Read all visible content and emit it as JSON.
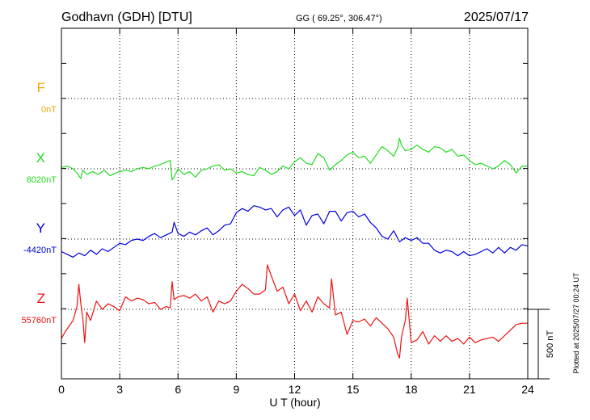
{
  "header": {
    "station": "Godhavn (GDH)  [DTU]",
    "coords": "GG ( 69.25°, 306.47°)",
    "date": "2025/07/17"
  },
  "side_note": "Plotted at 2025/07/27 00:24 UT",
  "scale_label": "500 nT",
  "chart_data": {
    "type": "line",
    "xlabel": "U T (hour)",
    "xlim": [
      0,
      24
    ],
    "x_ticks": [
      "0",
      "3",
      "6",
      "9",
      "12",
      "15",
      "18",
      "21",
      "24"
    ],
    "ylabel": "",
    "grid": true,
    "scale_bar_nT": 500,
    "series": [
      {
        "name": "F",
        "baseline_label": "0nT",
        "color": "#f5a800",
        "baseline_nT": 0,
        "x": [],
        "values": []
      },
      {
        "name": "X",
        "baseline_label": "8020nT",
        "color": "#22dd22",
        "baseline_nT": 8020,
        "x": [
          0,
          0.3,
          0.6,
          0.8,
          1.0,
          1.1,
          1.3,
          1.6,
          1.9,
          2.2,
          2.5,
          2.8,
          3.0,
          3.3,
          3.6,
          3.9,
          4.2,
          4.5,
          4.8,
          5.1,
          5.4,
          5.6,
          5.7,
          5.8,
          6.0,
          6.3,
          6.6,
          6.9,
          7.2,
          7.5,
          7.8,
          8.1,
          8.4,
          8.7,
          9.0,
          9.3,
          9.6,
          9.9,
          10.2,
          10.5,
          10.8,
          11.1,
          11.4,
          11.7,
          12.0,
          12.3,
          12.6,
          12.9,
          13.2,
          13.5,
          13.8,
          14.1,
          14.4,
          14.7,
          15.0,
          15.3,
          15.6,
          15.9,
          16.2,
          16.5,
          16.8,
          17.1,
          17.3,
          17.4,
          17.5,
          17.7,
          18.0,
          18.3,
          18.6,
          18.9,
          19.2,
          19.5,
          19.8,
          20.1,
          20.4,
          20.7,
          21.0,
          21.3,
          21.6,
          21.9,
          22.2,
          22.5,
          22.8,
          23.1,
          23.4,
          23.7,
          24.0
        ],
        "values": [
          10,
          20,
          0,
          -30,
          -70,
          -10,
          -40,
          -20,
          -40,
          -10,
          -50,
          -30,
          -20,
          -10,
          -20,
          0,
          10,
          0,
          20,
          30,
          50,
          60,
          -80,
          -60,
          0,
          -40,
          -20,
          -60,
          -10,
          0,
          20,
          30,
          -10,
          0,
          -30,
          -20,
          -40,
          -50,
          10,
          -10,
          -40,
          -20,
          20,
          0,
          50,
          80,
          40,
          30,
          110,
          80,
          -10,
          30,
          60,
          100,
          120,
          80,
          90,
          40,
          100,
          160,
          130,
          90,
          150,
          220,
          170,
          130,
          140,
          170,
          140,
          120,
          160,
          150,
          120,
          140,
          90,
          100,
          60,
          30,
          40,
          20,
          0,
          20,
          60,
          30,
          -30,
          20,
          20
        ]
      },
      {
        "name": "Y",
        "baseline_label": "-4420nT",
        "color": "#0000dd",
        "baseline_nT": -4420,
        "x": [
          0,
          0.3,
          0.6,
          0.9,
          1.2,
          1.5,
          1.8,
          2.1,
          2.4,
          2.7,
          3.0,
          3.3,
          3.6,
          3.9,
          4.2,
          4.5,
          4.8,
          5.1,
          5.4,
          5.7,
          5.8,
          6.0,
          6.3,
          6.6,
          6.9,
          7.2,
          7.5,
          7.8,
          8.1,
          8.4,
          8.7,
          9.0,
          9.3,
          9.6,
          9.9,
          10.2,
          10.5,
          10.8,
          11.1,
          11.4,
          11.7,
          12.0,
          12.3,
          12.6,
          12.9,
          13.2,
          13.5,
          13.8,
          14.1,
          14.4,
          14.7,
          15.0,
          15.3,
          15.6,
          15.9,
          16.2,
          16.5,
          16.8,
          17.1,
          17.4,
          17.7,
          18.0,
          18.3,
          18.6,
          18.9,
          19.2,
          19.5,
          19.8,
          20.1,
          20.4,
          20.7,
          21.0,
          21.3,
          21.6,
          21.9,
          22.2,
          22.5,
          22.8,
          23.1,
          23.4,
          23.7,
          24.0
        ],
        "values": [
          -90,
          -110,
          -130,
          -100,
          -120,
          -80,
          -110,
          -70,
          -90,
          -60,
          -30,
          -40,
          -10,
          0,
          -10,
          20,
          40,
          10,
          30,
          50,
          120,
          40,
          20,
          50,
          30,
          60,
          80,
          30,
          60,
          100,
          110,
          190,
          220,
          200,
          240,
          230,
          210,
          220,
          160,
          210,
          230,
          170,
          210,
          100,
          170,
          180,
          110,
          200,
          200,
          130,
          190,
          200,
          160,
          180,
          120,
          80,
          20,
          0,
          60,
          -20,
          10,
          -10,
          10,
          -30,
          -30,
          -80,
          -100,
          -80,
          -90,
          -120,
          -90,
          -120,
          -110,
          -90,
          -70,
          -100,
          -60,
          -100,
          -60,
          -80,
          -40,
          -50
        ]
      },
      {
        "name": "Z",
        "baseline_label": "55760nT",
        "color": "#ee1111",
        "baseline_nT": 55760,
        "x": [
          0,
          0.2,
          0.4,
          0.6,
          0.8,
          0.9,
          1.0,
          1.1,
          1.2,
          1.3,
          1.5,
          1.8,
          2.1,
          2.4,
          2.7,
          3.0,
          3.3,
          3.6,
          3.9,
          4.2,
          4.5,
          4.8,
          5.1,
          5.4,
          5.6,
          5.7,
          5.8,
          6.0,
          6.3,
          6.6,
          6.9,
          7.2,
          7.5,
          7.8,
          8.1,
          8.4,
          8.7,
          9.0,
          9.3,
          9.6,
          9.9,
          10.2,
          10.5,
          10.6,
          10.8,
          11.1,
          11.4,
          11.7,
          12.0,
          12.3,
          12.6,
          12.9,
          13.2,
          13.5,
          13.8,
          13.9,
          14.1,
          14.4,
          14.7,
          15.0,
          15.3,
          15.6,
          15.9,
          16.2,
          16.5,
          16.8,
          17.1,
          17.3,
          17.4,
          17.5,
          17.7,
          17.8,
          18.0,
          18.3,
          18.6,
          18.9,
          19.2,
          19.5,
          19.8,
          20.1,
          20.4,
          20.7,
          21.0,
          21.3,
          21.6,
          21.9,
          22.2,
          22.5,
          22.8,
          23.1,
          23.4,
          23.7,
          24.0
        ],
        "values": [
          -210,
          -160,
          -120,
          -80,
          20,
          180,
          40,
          -60,
          -240,
          -20,
          -80,
          60,
          0,
          40,
          20,
          -10,
          90,
          60,
          80,
          70,
          40,
          50,
          0,
          20,
          10,
          200,
          70,
          90,
          100,
          80,
          110,
          60,
          90,
          -20,
          60,
          40,
          60,
          130,
          180,
          150,
          110,
          110,
          140,
          320,
          240,
          130,
          160,
          40,
          110,
          -10,
          60,
          -20,
          90,
          40,
          10,
          220,
          -40,
          -20,
          -180,
          -80,
          -90,
          -70,
          -120,
          -60,
          -100,
          -140,
          -200,
          -320,
          -350,
          -200,
          -80,
          80,
          -240,
          -220,
          -160,
          -250,
          -190,
          -230,
          -190,
          -230,
          -210,
          -250,
          -200,
          -240,
          -220,
          -210,
          -200,
          -230,
          -190,
          -150,
          -110,
          -100,
          -100
        ]
      }
    ]
  }
}
